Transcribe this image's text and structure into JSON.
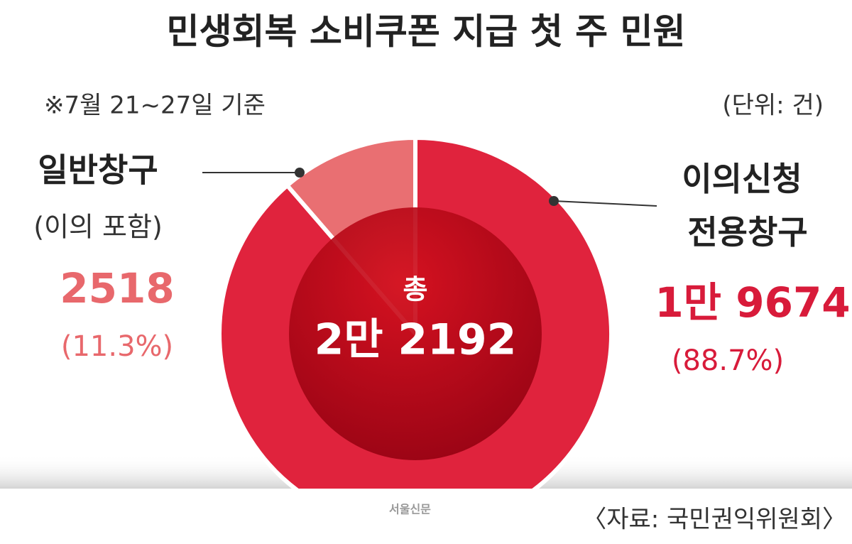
{
  "chart_data": {
    "type": "pie",
    "title": "민생회복 소비쿠폰 지급 첫 주 민원",
    "subtitle": "※7월 21~27일 기준",
    "unit": "(단위: 건)",
    "categories": [
      "일반창구",
      "이의신청 전용창구"
    ],
    "category_note": "(이의 포함)",
    "values": [
      2518,
      19674
    ],
    "value_labels": [
      "2518",
      "1만 9674"
    ],
    "percent_labels": [
      "(11.3%)",
      "(88.7%)"
    ],
    "colors": [
      "#e96f72",
      "#e0233d"
    ],
    "label_colors": [
      "#e8686c",
      "#d81b3a"
    ],
    "total_title": "총",
    "total_label": "2만 2192",
    "logo": "서울신문",
    "source": "〈자료: 국민권익위원회〉"
  }
}
